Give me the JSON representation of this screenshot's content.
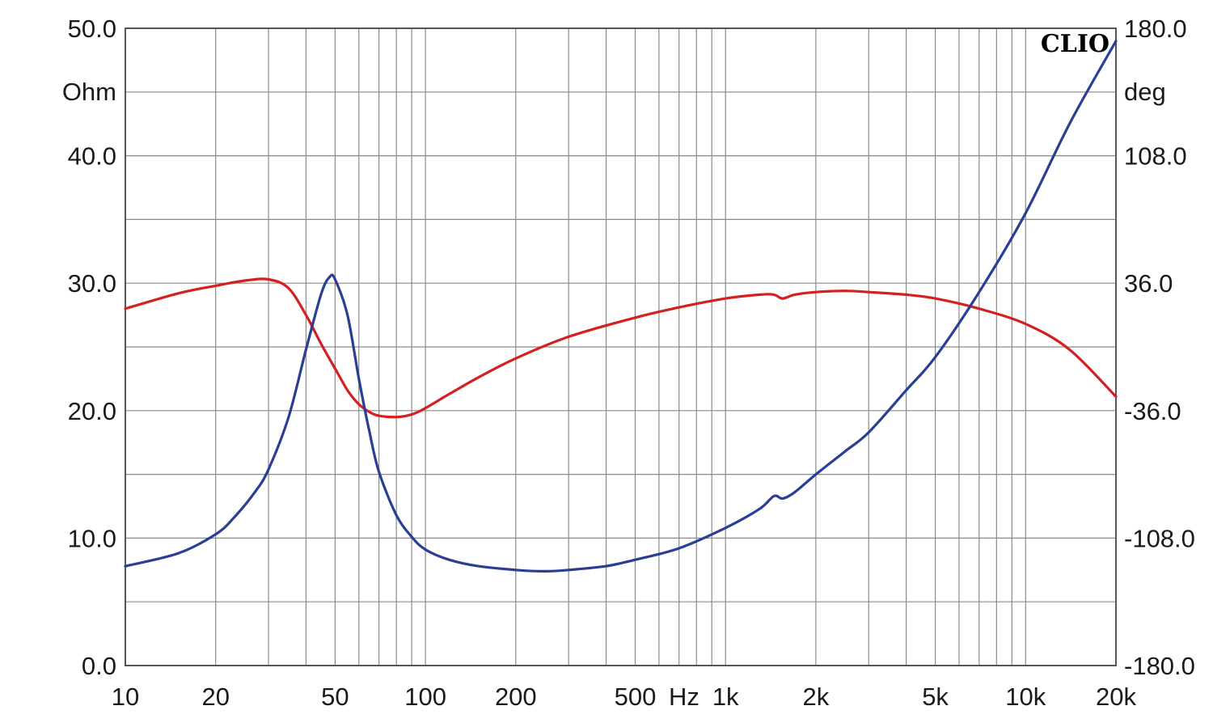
{
  "chart_data": {
    "type": "line",
    "title": "",
    "brand": "CLIO",
    "x_axis": {
      "scale": "log",
      "range": [
        10,
        20000
      ],
      "ticks": [
        {
          "value": 10,
          "label": "10"
        },
        {
          "value": 20,
          "label": "20"
        },
        {
          "value": 50,
          "label": "50"
        },
        {
          "value": 100,
          "label": "100"
        },
        {
          "value": 200,
          "label": "200"
        },
        {
          "value": 500,
          "label": "500"
        },
        {
          "value": 1000,
          "label": "1k"
        },
        {
          "value": 2000,
          "label": "2k"
        },
        {
          "value": 5000,
          "label": "5k"
        },
        {
          "value": 10000,
          "label": "10k"
        },
        {
          "value": 20000,
          "label": "20k"
        }
      ],
      "unit": "Hz"
    },
    "y_left": {
      "unit": "Ohm",
      "range": [
        0,
        50
      ],
      "ticks": [
        {
          "value": 0,
          "label": "0.0"
        },
        {
          "value": 10,
          "label": "10.0"
        },
        {
          "value": 20,
          "label": "20.0"
        },
        {
          "value": 30,
          "label": "30.0"
        },
        {
          "value": 40,
          "label": "40.0"
        },
        {
          "value": 50,
          "label": "50.0"
        }
      ]
    },
    "y_right": {
      "unit": "deg",
      "range": [
        -180,
        180
      ],
      "ticks": [
        {
          "value": -180,
          "label": "-180.0"
        },
        {
          "value": -108,
          "label": "-108.0"
        },
        {
          "value": -36,
          "label": "-36.0"
        },
        {
          "value": 36,
          "label": "36.0"
        },
        {
          "value": 108,
          "label": "108.0"
        },
        {
          "value": 180,
          "label": "180.0"
        }
      ]
    },
    "grid": true,
    "series": [
      {
        "axis": "right",
        "color": "#d42020",
        "points": [
          [
            10,
            28
          ],
          [
            15,
            29.2
          ],
          [
            20,
            29.8
          ],
          [
            25,
            30.2
          ],
          [
            30,
            30.3
          ],
          [
            35,
            29.6
          ],
          [
            40,
            27.5
          ],
          [
            45,
            25.2
          ],
          [
            50,
            23.3
          ],
          [
            55,
            21.6
          ],
          [
            60,
            20.5
          ],
          [
            65,
            19.9
          ],
          [
            70,
            19.6
          ],
          [
            80,
            19.5
          ],
          [
            90,
            19.7
          ],
          [
            100,
            20.2
          ],
          [
            120,
            21.3
          ],
          [
            150,
            22.6
          ],
          [
            200,
            24.1
          ],
          [
            300,
            25.8
          ],
          [
            500,
            27.3
          ],
          [
            700,
            28.1
          ],
          [
            1000,
            28.8
          ],
          [
            1300,
            29.1
          ],
          [
            1450,
            29.1
          ],
          [
            1550,
            28.8
          ],
          [
            1700,
            29.1
          ],
          [
            2000,
            29.3
          ],
          [
            2500,
            29.4
          ],
          [
            3000,
            29.3
          ],
          [
            4000,
            29.1
          ],
          [
            5000,
            28.8
          ],
          [
            7000,
            28.0
          ],
          [
            10000,
            26.8
          ],
          [
            14000,
            24.8
          ],
          [
            20000,
            21.1
          ]
        ]
      },
      {
        "axis": "left",
        "color": "#2a3e96",
        "points": [
          [
            10,
            7.8
          ],
          [
            15,
            8.8
          ],
          [
            20,
            10.3
          ],
          [
            23,
            11.6
          ],
          [
            27,
            13.6
          ],
          [
            30,
            15.4
          ],
          [
            35,
            19.5
          ],
          [
            40,
            24.8
          ],
          [
            45,
            29.2
          ],
          [
            48,
            30.5
          ],
          [
            50,
            30.3
          ],
          [
            55,
            27.5
          ],
          [
            60,
            22.5
          ],
          [
            65,
            18.4
          ],
          [
            70,
            15.2
          ],
          [
            80,
            11.8
          ],
          [
            90,
            10.1
          ],
          [
            100,
            9.1
          ],
          [
            120,
            8.3
          ],
          [
            150,
            7.8
          ],
          [
            200,
            7.5
          ],
          [
            250,
            7.4
          ],
          [
            300,
            7.5
          ],
          [
            400,
            7.8
          ],
          [
            500,
            8.3
          ],
          [
            700,
            9.2
          ],
          [
            1000,
            10.8
          ],
          [
            1300,
            12.3
          ],
          [
            1450,
            13.3
          ],
          [
            1550,
            13.1
          ],
          [
            1700,
            13.6
          ],
          [
            2000,
            15.0
          ],
          [
            2500,
            16.8
          ],
          [
            3000,
            18.3
          ],
          [
            4000,
            21.6
          ],
          [
            5000,
            24.2
          ],
          [
            7000,
            29.3
          ],
          [
            10000,
            35.5
          ],
          [
            14000,
            42.5
          ],
          [
            20000,
            49.0
          ]
        ]
      }
    ]
  }
}
